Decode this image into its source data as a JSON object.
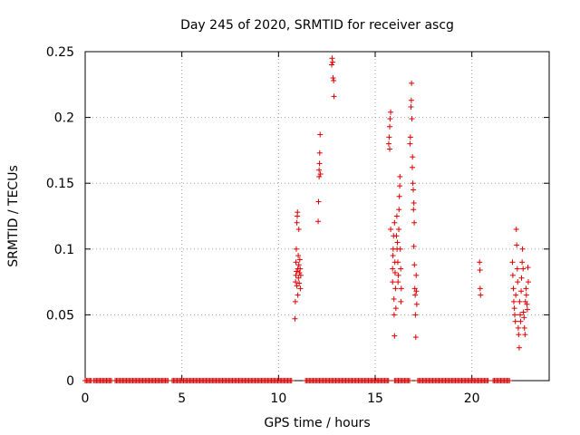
{
  "chart_data": {
    "type": "scatter",
    "title": "Day 245 of 2020, SRMTID for receiver ascg",
    "xlabel": "GPS time / hours",
    "ylabel": "SRMTID / TECUs",
    "xlim": [
      0,
      24
    ],
    "ylim": [
      0,
      0.25
    ],
    "x_ticks": [
      0,
      5,
      10,
      15,
      20
    ],
    "x_tick_labels": [
      "0",
      "5",
      "10",
      "15",
      "20"
    ],
    "y_ticks": [
      0,
      0.05,
      0.1,
      0.15,
      0.2,
      0.25
    ],
    "y_tick_labels": [
      "0",
      "0.05",
      "0.1",
      "0.15",
      "0.2",
      "0.25"
    ],
    "grid": true,
    "marker": "plus",
    "series": [
      {
        "name": "SRMTID",
        "color": "#dd0000",
        "zero_segments": [
          [
            0,
            0.35
          ],
          [
            0.45,
            1.4
          ],
          [
            1.55,
            4.3
          ],
          [
            4.5,
            10.7
          ],
          [
            11.4,
            15.7
          ],
          [
            16.0,
            16.8
          ],
          [
            17.2,
            20.9
          ],
          [
            21.1,
            22.0
          ]
        ],
        "points": [
          [
            10.85,
            0.047
          ],
          [
            10.87,
            0.06
          ],
          [
            10.88,
            0.075
          ],
          [
            10.9,
            0.08
          ],
          [
            10.9,
            0.09
          ],
          [
            10.92,
            0.1
          ],
          [
            10.93,
            0.083
          ],
          [
            10.95,
            0.072
          ],
          [
            10.95,
            0.12
          ],
          [
            10.97,
            0.125
          ],
          [
            10.98,
            0.128
          ],
          [
            11.0,
            0.065
          ],
          [
            11.0,
            0.085
          ],
          [
            11.02,
            0.095
          ],
          [
            11.03,
            0.078
          ],
          [
            11.05,
            0.088
          ],
          [
            11.05,
            0.115
          ],
          [
            11.07,
            0.074
          ],
          [
            11.08,
            0.082
          ],
          [
            11.1,
            0.092
          ],
          [
            11.12,
            0.085
          ],
          [
            11.13,
            0.07
          ],
          [
            11.15,
            0.08
          ],
          [
            12.05,
            0.121
          ],
          [
            12.07,
            0.136
          ],
          [
            12.1,
            0.155
          ],
          [
            12.1,
            0.16
          ],
          [
            12.12,
            0.165
          ],
          [
            12.13,
            0.173
          ],
          [
            12.15,
            0.187
          ],
          [
            12.17,
            0.157
          ],
          [
            12.75,
            0.24
          ],
          [
            12.77,
            0.245
          ],
          [
            12.8,
            0.242
          ],
          [
            12.82,
            0.23
          ],
          [
            12.85,
            0.228
          ],
          [
            12.87,
            0.216
          ],
          [
            15.7,
            0.18
          ],
          [
            15.72,
            0.185
          ],
          [
            15.75,
            0.193
          ],
          [
            15.77,
            0.199
          ],
          [
            15.8,
            0.204
          ],
          [
            15.75,
            0.176
          ],
          [
            15.8,
            0.115
          ],
          [
            15.9,
            0.075
          ],
          [
            15.9,
            0.085
          ],
          [
            15.92,
            0.095
          ],
          [
            15.93,
            0.1
          ],
          [
            15.95,
            0.11
          ],
          [
            15.97,
            0.062
          ],
          [
            15.98,
            0.05
          ],
          [
            16.0,
            0.034
          ],
          [
            16.0,
            0.12
          ],
          [
            16.02,
            0.09
          ],
          [
            16.03,
            0.082
          ],
          [
            16.05,
            0.07
          ],
          [
            16.07,
            0.055
          ],
          [
            16.1,
            0.11
          ],
          [
            16.12,
            0.125
          ],
          [
            16.13,
            0.1
          ],
          [
            16.15,
            0.105
          ],
          [
            16.17,
            0.09
          ],
          [
            16.18,
            0.075
          ],
          [
            16.2,
            0.08
          ],
          [
            16.22,
            0.115
          ],
          [
            16.23,
            0.13
          ],
          [
            16.25,
            0.14
          ],
          [
            16.27,
            0.148
          ],
          [
            16.28,
            0.155
          ],
          [
            16.3,
            0.1
          ],
          [
            16.32,
            0.085
          ],
          [
            16.33,
            0.06
          ],
          [
            16.35,
            0.07
          ],
          [
            16.8,
            0.18
          ],
          [
            16.82,
            0.185
          ],
          [
            16.85,
            0.208
          ],
          [
            16.87,
            0.213
          ],
          [
            16.88,
            0.226
          ],
          [
            16.9,
            0.199
          ],
          [
            16.92,
            0.162
          ],
          [
            16.93,
            0.17
          ],
          [
            16.95,
            0.15
          ],
          [
            16.97,
            0.145
          ],
          [
            16.98,
            0.13
          ],
          [
            17.0,
            0.135
          ],
          [
            17.0,
            0.102
          ],
          [
            17.02,
            0.12
          ],
          [
            17.03,
            0.088
          ],
          [
            17.05,
            0.07
          ],
          [
            17.07,
            0.065
          ],
          [
            17.08,
            0.05
          ],
          [
            17.1,
            0.033
          ],
          [
            17.12,
            0.08
          ],
          [
            17.13,
            0.068
          ],
          [
            17.15,
            0.058
          ],
          [
            20.4,
            0.09
          ],
          [
            20.42,
            0.084
          ],
          [
            20.43,
            0.07
          ],
          [
            20.45,
            0.065
          ],
          [
            22.1,
            0.09
          ],
          [
            22.12,
            0.08
          ],
          [
            22.15,
            0.07
          ],
          [
            22.17,
            0.06
          ],
          [
            22.2,
            0.055
          ],
          [
            22.22,
            0.05
          ],
          [
            22.25,
            0.045
          ],
          [
            22.27,
            0.065
          ],
          [
            22.3,
            0.115
          ],
          [
            22.32,
            0.103
          ],
          [
            22.35,
            0.085
          ],
          [
            22.37,
            0.075
          ],
          [
            22.4,
            0.04
          ],
          [
            22.42,
            0.035
          ],
          [
            22.45,
            0.025
          ],
          [
            22.47,
            0.06
          ],
          [
            22.5,
            0.05
          ],
          [
            22.52,
            0.045
          ],
          [
            22.55,
            0.068
          ],
          [
            22.57,
            0.078
          ],
          [
            22.6,
            0.09
          ],
          [
            22.62,
            0.1
          ],
          [
            22.65,
            0.085
          ],
          [
            22.67,
            0.052
          ],
          [
            22.7,
            0.048
          ],
          [
            22.72,
            0.04
          ],
          [
            22.75,
            0.035
          ],
          [
            22.77,
            0.06
          ],
          [
            22.8,
            0.07
          ],
          [
            22.82,
            0.065
          ],
          [
            22.85,
            0.058
          ],
          [
            22.87,
            0.054
          ],
          [
            22.9,
            0.086
          ],
          [
            22.92,
            0.075
          ]
        ]
      }
    ]
  }
}
